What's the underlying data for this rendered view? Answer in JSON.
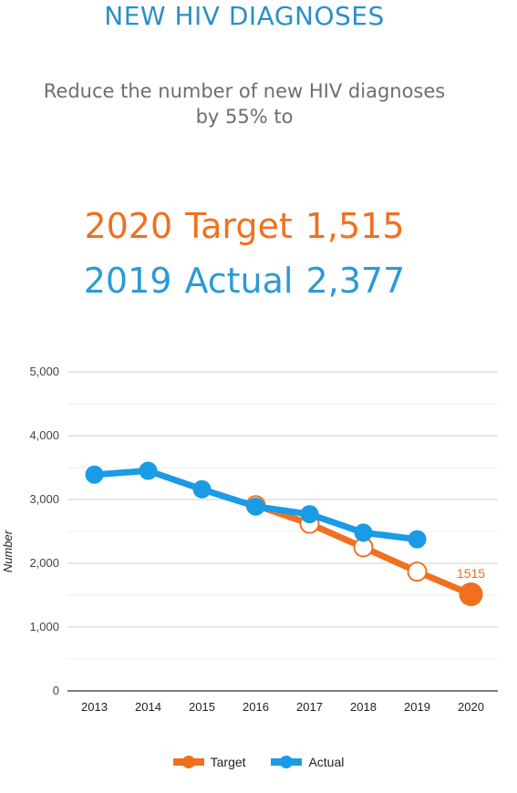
{
  "header": {
    "title": "NEW HIV DIAGNOSES",
    "subtitle_line1": "Reduce the number of new HIV diagnoses",
    "subtitle_line2": "by 55% to"
  },
  "highlight": {
    "target": {
      "year": "2020",
      "label": "Target",
      "value": "1,515"
    },
    "actual": {
      "year": "2019",
      "label": "Actual",
      "value": "2,377"
    }
  },
  "colors": {
    "target": "#f0701f",
    "actual": "#1a9be6",
    "title": "#2a8fc8",
    "grid": "#d9d9d9"
  },
  "chart_data": {
    "type": "line",
    "title": "",
    "xlabel": "",
    "ylabel": "Number",
    "x": [
      "2013",
      "2014",
      "2015",
      "2016",
      "2017",
      "2018",
      "2019",
      "2020"
    ],
    "ylim": [
      0,
      5000
    ],
    "yticks": [
      0,
      1000,
      2000,
      3000,
      4000,
      5000
    ],
    "ytick_labels": [
      "0",
      "1,000",
      "2,000",
      "3,000",
      "4,000",
      "5,000"
    ],
    "grid": true,
    "legend_position": "bottom",
    "series": [
      {
        "name": "Target",
        "color": "#f0701f",
        "values": [
          null,
          null,
          null,
          2910,
          2620,
          2250,
          1870,
          1515
        ]
      },
      {
        "name": "Actual",
        "color": "#1a9be6",
        "values": [
          3390,
          3450,
          3160,
          2890,
          2770,
          2480,
          2377,
          null
        ]
      }
    ],
    "annotations": [
      {
        "series": "Target",
        "x": "2020",
        "text": "1515"
      }
    ]
  }
}
